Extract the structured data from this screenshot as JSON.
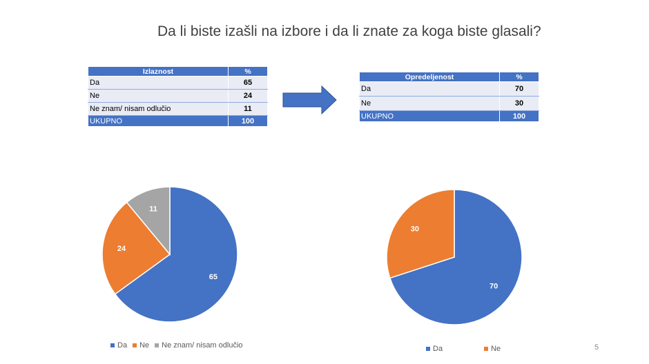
{
  "slide": {
    "title": "Da li biste izašli na izbore i da li znate za koga biste glasali?",
    "page_number": "5"
  },
  "table1": {
    "header": {
      "label": "Izlaznost",
      "unit": "%"
    },
    "rows": [
      {
        "label": "Da",
        "value": "65"
      },
      {
        "label": "Ne",
        "value": "24"
      },
      {
        "label": "Ne znam/ nisam odlučio",
        "value": "11"
      }
    ],
    "total": {
      "label": "UKUPNO",
      "value": "100"
    }
  },
  "table2": {
    "header": {
      "label": "Opredeljenost",
      "unit": "%"
    },
    "rows": [
      {
        "label": "Da",
        "value": "70"
      },
      {
        "label": "Ne",
        "value": "30"
      }
    ],
    "total": {
      "label": "UKUPNO",
      "value": "100"
    }
  },
  "arrow": {
    "color": "#4472c4",
    "icon": "right-arrow-icon"
  },
  "chart_data": [
    {
      "type": "pie",
      "categories": [
        "Da",
        "Ne",
        "Ne znam/ nisam odlučio"
      ],
      "values": [
        65,
        24,
        11
      ],
      "data_labels": [
        "65",
        "24",
        "11"
      ],
      "colors": [
        "#4472c4",
        "#ed7d31",
        "#a5a5a5"
      ],
      "legend": "bottom",
      "start": "top, clockwise"
    },
    {
      "type": "pie",
      "categories": [
        "Da",
        "Ne"
      ],
      "values": [
        70,
        30
      ],
      "data_labels": [
        "70",
        "30"
      ],
      "colors": [
        "#4472c4",
        "#ed7d31"
      ],
      "legend": "bottom",
      "start": "top, clockwise"
    }
  ]
}
